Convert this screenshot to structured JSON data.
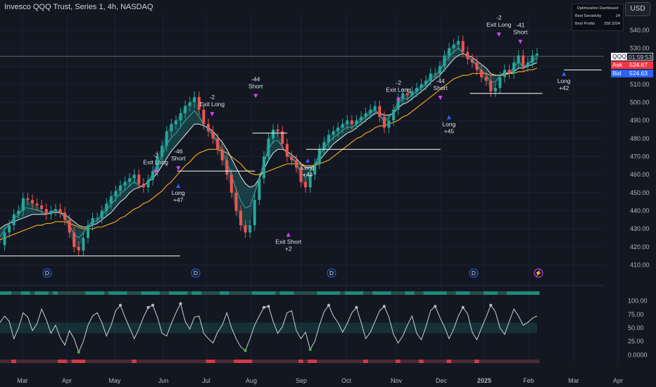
{
  "header": {
    "title": "Invesco QQQ Trust, Series 1, 4h, NASDAQ",
    "currency": "USD"
  },
  "dashboard": {
    "title": "Optimization Dashboard",
    "rows": [
      {
        "label": "Best Sensitivity",
        "value": "24"
      },
      {
        "label": "Best Profits",
        "value": "258.3204"
      }
    ]
  },
  "price_labels": {
    "symbol": "QQQ",
    "countdown": "01:59:53",
    "ask_label": "Ask",
    "ask_value": "524.67",
    "bid_label": "Bid",
    "bid_value": "524.63"
  },
  "colors": {
    "bg": "#131722",
    "accent_up": "#26a69a",
    "accent_down": "#ef5350",
    "signal": "#e040fb",
    "long_arrow": "#2962ff",
    "ma_orange": "#f0a020",
    "ma_white": "#e8e8e8"
  },
  "icons": {
    "dividend": "D",
    "earnings": "⚡"
  },
  "chart_data": {
    "type": "line",
    "y_ticks": [
      540,
      530,
      520,
      510,
      500,
      490,
      480,
      470,
      460,
      450,
      440,
      430,
      420,
      410
    ],
    "y_range": [
      404,
      545
    ],
    "x_ticks": [
      "Mar",
      "Apr",
      "May",
      "Jun",
      "Jul",
      "Aug",
      "Sep",
      "Oct",
      "Nov",
      "Dec",
      "2025",
      "Feb",
      "Mar",
      "Apr"
    ],
    "osc_ticks": [
      "100.00",
      "75.00",
      "50.00",
      "25.00",
      "0.0000"
    ],
    "osc_range": [
      -10,
      110
    ],
    "price": [
      421,
      428,
      432,
      438,
      440,
      447,
      446,
      444,
      443,
      441,
      438,
      440,
      441,
      439,
      435,
      428,
      420,
      418,
      425,
      432,
      436,
      436,
      440,
      444,
      448,
      451,
      454,
      456,
      458,
      460,
      455,
      453,
      457,
      462,
      470,
      476,
      484,
      488,
      490,
      494,
      498,
      500,
      503,
      496,
      488,
      484,
      480,
      474,
      468,
      460,
      450,
      440,
      432,
      428,
      432,
      446,
      458,
      470,
      480,
      485,
      484,
      477,
      470,
      468,
      464,
      456,
      453,
      460,
      466,
      474,
      478,
      482,
      484,
      486,
      488,
      490,
      488,
      490,
      492,
      494,
      496,
      498,
      492,
      486,
      490,
      496,
      502,
      505,
      504,
      506,
      508,
      510,
      512,
      516,
      516,
      520,
      526,
      530,
      532,
      534,
      528,
      524,
      522,
      518,
      514,
      512,
      506,
      508,
      514,
      518,
      516,
      522,
      526,
      520,
      522,
      526,
      527
    ],
    "ma_white": [
      430,
      432,
      433,
      434,
      435,
      436,
      437,
      438,
      438,
      438,
      438,
      439,
      439,
      439,
      438,
      436,
      434,
      432,
      431,
      431,
      432,
      433,
      435,
      437,
      439,
      442,
      445,
      447,
      450,
      452,
      453,
      454,
      456,
      458,
      461,
      465,
      469,
      473,
      476,
      479,
      482,
      485,
      488,
      488,
      487,
      486,
      484,
      481,
      478,
      474,
      469,
      464,
      459,
      455,
      453,
      454,
      458,
      463,
      468,
      472,
      474,
      474,
      473,
      471,
      469,
      466,
      464,
      464,
      465,
      468,
      471,
      474,
      477,
      479,
      481,
      483,
      484,
      486,
      488,
      490,
      492,
      494,
      494,
      493,
      493,
      494,
      497,
      499,
      500,
      502,
      504,
      506,
      508,
      511,
      513,
      515,
      518,
      521,
      524,
      526,
      527,
      526,
      525,
      523,
      521,
      519,
      516,
      515,
      515,
      516,
      516,
      517,
      519,
      519,
      520,
      521,
      522
    ],
    "ma_orange": [
      424,
      425,
      426,
      427,
      428,
      429,
      430,
      431,
      432,
      432,
      433,
      433,
      434,
      434,
      434,
      433,
      432,
      431,
      430,
      430,
      430,
      431,
      431,
      432,
      433,
      434,
      436,
      437,
      439,
      441,
      442,
      444,
      445,
      447,
      449,
      451,
      454,
      456,
      459,
      462,
      465,
      467,
      470,
      472,
      473,
      474,
      474,
      474,
      473,
      472,
      470,
      468,
      466,
      463,
      461,
      460,
      460,
      461,
      462,
      463,
      464,
      465,
      466,
      466,
      466,
      466,
      465,
      465,
      465,
      466,
      467,
      468,
      470,
      472,
      474,
      476,
      478,
      480,
      481,
      483,
      484,
      486,
      487,
      487,
      488,
      489,
      490,
      492,
      493,
      495,
      497,
      499,
      501,
      503,
      505,
      507,
      509,
      511,
      513,
      514,
      515,
      515,
      516,
      516,
      516,
      516,
      515,
      515,
      515,
      515,
      516,
      516,
      517,
      517,
      518,
      518,
      519
    ],
    "oscillator": [
      60,
      72,
      62,
      30,
      50,
      78,
      70,
      45,
      58,
      85,
      65,
      40,
      55,
      32,
      18,
      45,
      30,
      5,
      25,
      55,
      72,
      78,
      60,
      35,
      55,
      82,
      92,
      70,
      50,
      30,
      48,
      70,
      88,
      92,
      70,
      40,
      35,
      58,
      78,
      95,
      62,
      48,
      70,
      72,
      40,
      30,
      22,
      42,
      55,
      78,
      50,
      30,
      15,
      8,
      30,
      55,
      72,
      88,
      90,
      62,
      40,
      52,
      78,
      82,
      45,
      30,
      42,
      10,
      25,
      55,
      80,
      92,
      72,
      60,
      42,
      58,
      78,
      88,
      60,
      30,
      42,
      62,
      82,
      90,
      70,
      38,
      22,
      35,
      55,
      72,
      40,
      28,
      52,
      82,
      90,
      70,
      52,
      30,
      48,
      72,
      88,
      76,
      42,
      28,
      50,
      70,
      92,
      80,
      50,
      38,
      62,
      85,
      72,
      55,
      60,
      68,
      72
    ],
    "annotations": [
      {
        "label": "-2",
        "label2": "Exit Long",
        "x": 0.29,
        "y": 458,
        "side": "top"
      },
      {
        "label": "-46",
        "label2": "Short",
        "x": 0.332,
        "y": 460,
        "side": "top"
      },
      {
        "label": "Long",
        "label2": "+47",
        "x": 0.332,
        "y": 455,
        "side": "bottom"
      },
      {
        "label": "-2",
        "label2": "Exit Long",
        "x": 0.395,
        "y": 490,
        "side": "top"
      },
      {
        "label": "-44",
        "label2": "Short",
        "x": 0.476,
        "y": 500,
        "side": "top"
      },
      {
        "label": "Exit Short",
        "label2": "+2",
        "x": 0.537,
        "y": 428,
        "side": "bottom"
      },
      {
        "label": "Long",
        "label2": "+44",
        "x": 0.573,
        "y": 469,
        "side": "bottom"
      },
      {
        "label": "-2",
        "label2": "Exit Long",
        "x": 0.742,
        "y": 498,
        "side": "top"
      },
      {
        "label": "-44",
        "label2": "Short",
        "x": 0.82,
        "y": 499,
        "side": "top"
      },
      {
        "label": "Long",
        "label2": "+45",
        "x": 0.836,
        "y": 493,
        "side": "bottom"
      },
      {
        "label": "-2",
        "label2": "Exit Long",
        "x": 0.929,
        "y": 534,
        "side": "top"
      },
      {
        "label": "-41",
        "label2": "Short",
        "x": 0.969,
        "y": 530,
        "side": "top"
      },
      {
        "label": "Long",
        "label2": "+42",
        "x": 1.05,
        "y": 517,
        "side": "bottom"
      }
    ],
    "h_levels": [
      {
        "y": 415,
        "x0": 0.0,
        "x1": 0.335
      },
      {
        "y": 462,
        "x0": 0.33,
        "x1": 0.475
      },
      {
        "y": 483,
        "x0": 0.47,
        "x1": 0.535
      },
      {
        "y": 474,
        "x0": 0.57,
        "x1": 0.82
      },
      {
        "y": 505,
        "x0": 0.875,
        "x1": 1.01
      },
      {
        "y": 518,
        "x0": 1.05,
        "x1": 1.12
      }
    ]
  }
}
